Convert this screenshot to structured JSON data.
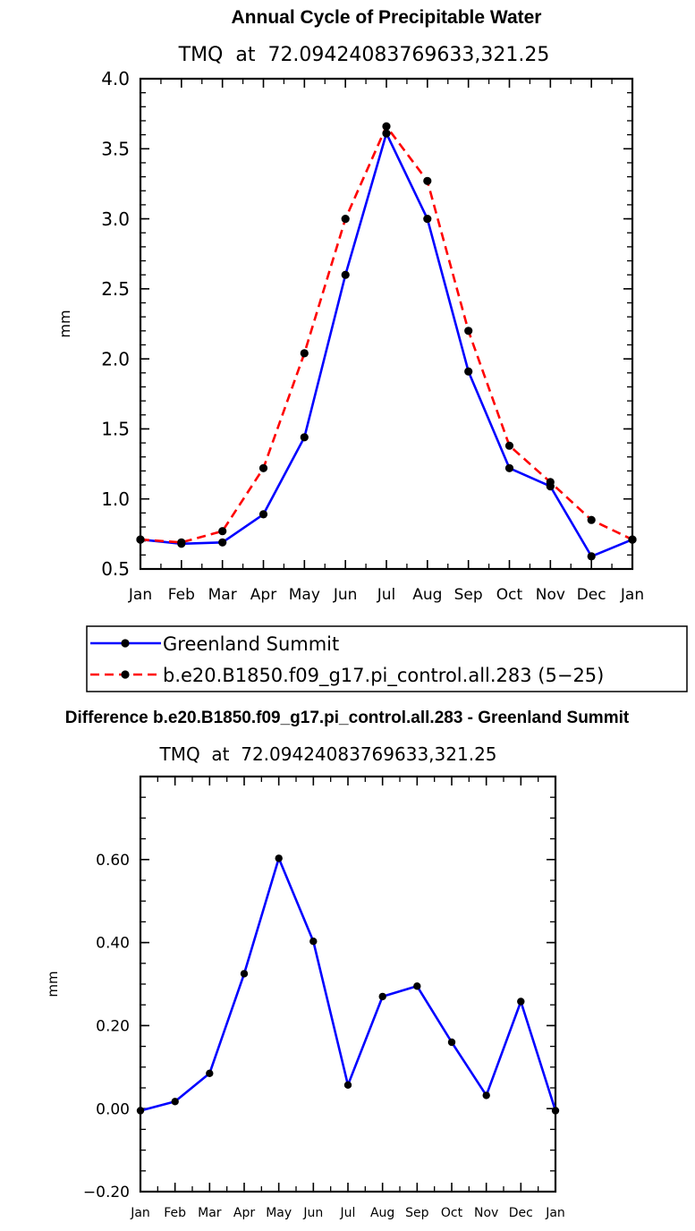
{
  "chart_data": [
    {
      "type": "line",
      "title": "Annual Cycle of Precipitable Water",
      "subtitle": "TMQ  at  72.09424083769633,321.25",
      "xlabel": "",
      "ylabel": "mm",
      "categories": [
        "Jan",
        "Feb",
        "Mar",
        "Apr",
        "May",
        "Jun",
        "Jul",
        "Aug",
        "Sep",
        "Oct",
        "Nov",
        "Dec",
        "Jan"
      ],
      "ylim": [
        0.5,
        4.0
      ],
      "yticks": [
        0.5,
        1.0,
        1.5,
        2.0,
        2.5,
        3.0,
        3.5,
        4.0
      ],
      "ytick_labels": [
        "0.5",
        "1.0",
        "1.5",
        "2.0",
        "2.5",
        "3.0",
        "3.5",
        "4.0"
      ],
      "grid": false,
      "legend_position": "bottom",
      "series": [
        {
          "name": "Greenland Summit",
          "color": "#0000ff",
          "dash": "solid",
          "values": [
            0.71,
            0.68,
            0.69,
            0.89,
            1.44,
            2.6,
            3.61,
            3.0,
            1.91,
            1.22,
            1.09,
            0.59,
            0.71
          ]
        },
        {
          "name": "b.e20.B1850.f09_g17.pi_control.all.283 (5−25)",
          "color": "#ff0000",
          "dash": "dashed",
          "values": [
            0.71,
            0.69,
            0.77,
            1.22,
            2.04,
            3.0,
            3.66,
            3.27,
            2.2,
            1.38,
            1.12,
            0.85,
            0.71
          ]
        }
      ]
    },
    {
      "type": "line",
      "title": "Difference b.e20.B1850.f09_g17.pi_control.all.283 - Greenland Summit",
      "subtitle": "TMQ  at  72.09424083769633,321.25",
      "xlabel": "",
      "ylabel": "mm",
      "categories": [
        "Jan",
        "Feb",
        "Mar",
        "Apr",
        "May",
        "Jun",
        "Jul",
        "Aug",
        "Sep",
        "Oct",
        "Nov",
        "Dec",
        "Jan"
      ],
      "ylim": [
        -0.2,
        0.8
      ],
      "yticks": [
        -0.2,
        0.0,
        0.2,
        0.4,
        0.6
      ],
      "ytick_labels": [
        "−0.20",
        "0.00",
        "0.20",
        "0.40",
        "0.60"
      ],
      "grid": false,
      "series": [
        {
          "color": "#0000ff",
          "dash": "solid",
          "values": [
            -0.005,
            0.017,
            0.085,
            0.325,
            0.603,
            0.403,
            0.057,
            0.27,
            0.295,
            0.16,
            0.032,
            0.258,
            -0.005
          ]
        }
      ]
    }
  ]
}
